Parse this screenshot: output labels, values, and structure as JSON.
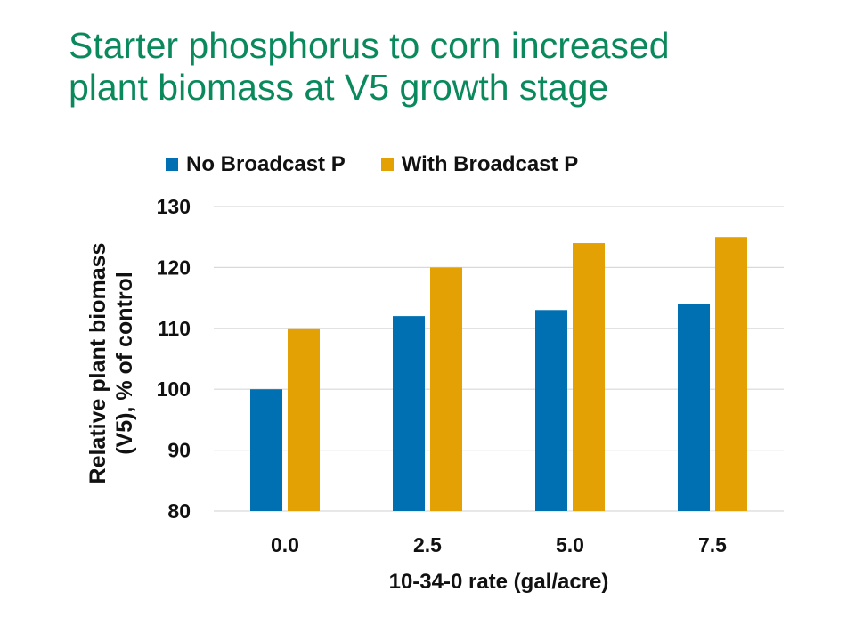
{
  "slide": {
    "title_line1": "Starter phosphorus to corn increased",
    "title_line2": "plant biomass at V5 growth stage"
  },
  "colors": {
    "title": "#0a8a5c",
    "series1": "#0070b2",
    "series2": "#e3a104",
    "grid": "#d9d9d9"
  },
  "chart_data": {
    "type": "bar",
    "title": "Starter phosphorus to corn increased plant biomass at V5 growth stage",
    "categories": [
      "0.0",
      "2.5",
      "5.0",
      "7.5"
    ],
    "series": [
      {
        "name": "No Broadcast P",
        "values": [
          100,
          112,
          113,
          114
        ]
      },
      {
        "name": "With Broadcast P",
        "values": [
          110,
          120,
          124,
          125
        ]
      }
    ],
    "xlabel": "10-34-0 rate (gal/acre)",
    "ylabel_line1": "Relative plant biomass",
    "ylabel_line2": "(V5), % of control",
    "ylim": [
      80,
      130
    ],
    "yticks": [
      80,
      90,
      100,
      110,
      120,
      130
    ],
    "grid": true,
    "legend_position": "top"
  }
}
